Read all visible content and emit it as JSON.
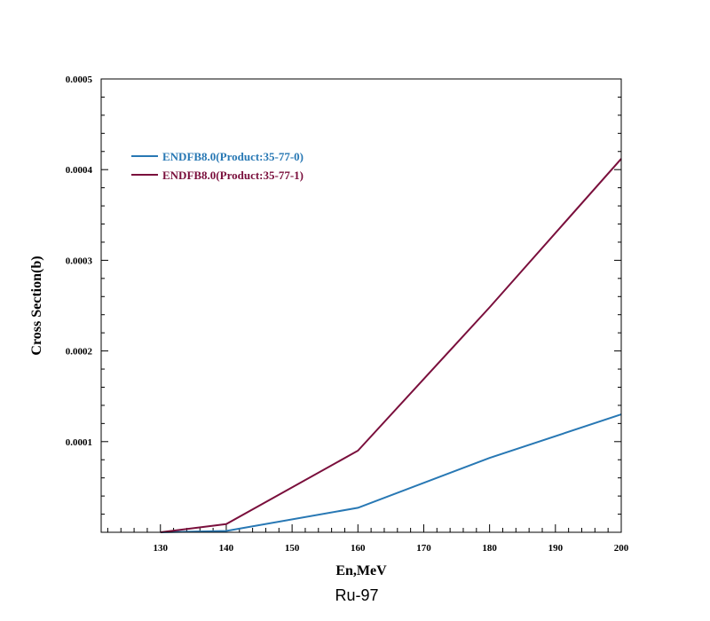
{
  "chart_data": {
    "type": "line",
    "title": "",
    "caption": "Ru-97",
    "xlabel": "En,MeV",
    "ylabel": "Cross Section(b)",
    "xlim": [
      121,
      200
    ],
    "ylim": [
      0,
      0.0005
    ],
    "x_ticks": [
      130,
      140,
      150,
      160,
      170,
      180,
      190,
      200
    ],
    "x_tick_labels": [
      "130",
      "140",
      "150",
      "160",
      "170",
      "180",
      "190",
      "200"
    ],
    "y_ticks": [
      0.0001,
      0.0002,
      0.0003,
      0.0004,
      0.0005
    ],
    "y_tick_labels": [
      "0.0001",
      "0.0002",
      "0.0003",
      "0.0004",
      "0.0005"
    ],
    "grid": false,
    "legend_position": "top-left",
    "series": [
      {
        "name": "ENDFB8.0(Product:35-77-0)",
        "color": "#2878b4",
        "x": [
          130,
          140,
          160,
          180,
          200
        ],
        "y": [
          0.0,
          1.5e-06,
          2.7e-05,
          8.2e-05,
          0.00013
        ]
      },
      {
        "name": "ENDFB8.0(Product:35-77-1)",
        "color": "#7a0f3c",
        "x": [
          130,
          140,
          160,
          180,
          200
        ],
        "y": [
          0.0,
          9e-06,
          9e-05,
          0.000248,
          0.000412
        ]
      }
    ]
  }
}
